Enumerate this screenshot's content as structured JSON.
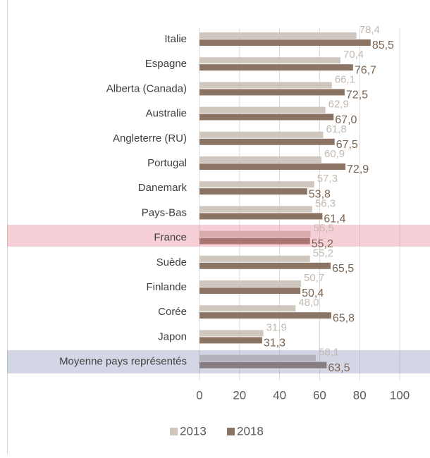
{
  "chart_data": {
    "type": "bar",
    "orientation": "horizontal",
    "categories": [
      "Italie",
      "Espagne",
      "Alberta (Canada)",
      "Australie",
      "Angleterre (RU)",
      "Portugal",
      "Danemark",
      "Pays-Bas",
      "France",
      "Suède",
      "Finlande",
      "Corée",
      "Japon",
      "Moyenne pays représentés"
    ],
    "series": [
      {
        "name": "2013",
        "color": "#cfc6bd",
        "values": [
          78.4,
          70.4,
          66.1,
          62.9,
          61.8,
          60.9,
          57.3,
          56.3,
          55.5,
          55.2,
          50.7,
          48.0,
          31.9,
          58.1
        ],
        "value_labels": [
          "78,4",
          "70,4",
          "66,1",
          "62,9",
          "61,8",
          "60,9",
          "57,3",
          "56,3",
          "55,5",
          "55,2",
          "50,7",
          "48,0",
          "31,9",
          "58,1"
        ]
      },
      {
        "name": "2018",
        "color": "#8b7463",
        "values": [
          85.5,
          76.7,
          72.5,
          67.0,
          67.5,
          72.9,
          53.8,
          61.4,
          55.2,
          65.5,
          50.4,
          65.8,
          31.3,
          63.5
        ],
        "value_labels": [
          "85,5",
          "76,7",
          "72,5",
          "67,0",
          "67,5",
          "72,9",
          "53,8",
          "61,4",
          "55,2",
          "65,5",
          "50,4",
          "65,8",
          "31,3",
          "63,5"
        ]
      }
    ],
    "xlim": [
      0,
      100
    ],
    "xticks": [
      0,
      20,
      40,
      60,
      80,
      100
    ],
    "grid": true,
    "legend": "bottom"
  }
}
